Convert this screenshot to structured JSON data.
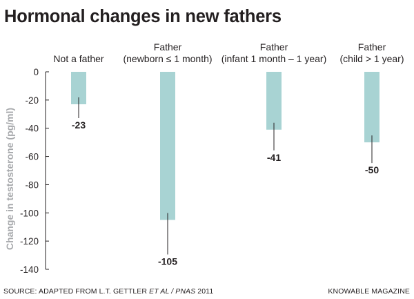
{
  "header": {
    "title": "Hormonal changes in new fathers"
  },
  "footer": {
    "source_prefix": "SOURCE: ADAPTED FROM L.T. GETTLER ",
    "source_italic": "ET AL / PNAS",
    "source_suffix": " 2011",
    "publisher": "KNOWABLE MAGAZINE"
  },
  "chart_data": {
    "type": "bar",
    "title": "Hormonal changes in new fathers",
    "ylabel": "Change in testosterone (pg/ml)",
    "xlabel": "",
    "ylim": [
      -140,
      0
    ],
    "yticks": [
      0,
      -20,
      -40,
      -60,
      -80,
      -100,
      -120,
      -140
    ],
    "categories": [
      [
        "Not a father"
      ],
      [
        "Father",
        "(newborn ≤ 1 month)"
      ],
      [
        "Father",
        "(infant 1 month – 1 year)"
      ],
      [
        "Father",
        "(child > 1 year)"
      ]
    ],
    "values": [
      -23,
      -105,
      -41,
      -50
    ],
    "data_labels": [
      "-23",
      "-105",
      "-41",
      "-50"
    ],
    "bar_color": "#a8d3d3",
    "grid": false
  }
}
